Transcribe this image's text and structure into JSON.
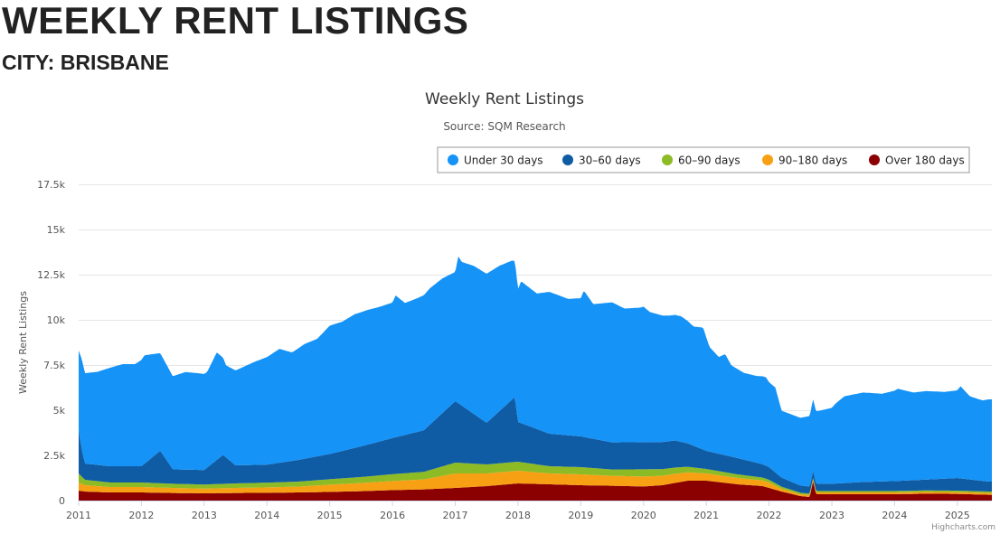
{
  "page": {
    "title": "WEEKLY RENT LISTINGS",
    "subtitle": "CITY: BRISBANE"
  },
  "credits": "Highcharts.com",
  "chart_data": {
    "type": "area",
    "stacked": true,
    "title": "Weekly Rent Listings",
    "subtitle": "Source: SQM Research",
    "ylabel": "Weekly Rent Listings",
    "xlabel": "",
    "ylim": [
      0,
      17500
    ],
    "yticks": [
      0,
      2500,
      5000,
      7500,
      10000,
      12500,
      15000,
      17500
    ],
    "ytick_labels": [
      "0",
      "2.5k",
      "5k",
      "7.5k",
      "10k",
      "12.5k",
      "15k",
      "17.5k"
    ],
    "xlim": [
      2011,
      2025.55
    ],
    "xticks": [
      2011,
      2012,
      2013,
      2014,
      2015,
      2016,
      2017,
      2018,
      2019,
      2020,
      2021,
      2022,
      2023,
      2024,
      2025
    ],
    "xtick_labels": [
      "2011",
      "2012",
      "2013",
      "2014",
      "2015",
      "2016",
      "2017",
      "2018",
      "2019",
      "2020",
      "2021",
      "2022",
      "2023",
      "2024",
      "2025"
    ],
    "grid": true,
    "legend_position": "top-right",
    "series": [
      {
        "name": "Over 180 days",
        "color": "#8b0000",
        "x": [
          2011.0,
          2011.1,
          2011.5,
          2012.0,
          2012.5,
          2013.0,
          2013.5,
          2014.0,
          2014.5,
          2015.0,
          2015.5,
          2016.0,
          2016.5,
          2017.0,
          2017.5,
          2018.0,
          2018.5,
          2019.0,
          2019.5,
          2020.0,
          2020.3,
          2020.7,
          2021.0,
          2021.5,
          2021.9,
          2022.2,
          2022.5,
          2022.65,
          2022.7,
          2022.75,
          2023.0,
          2023.5,
          2024.0,
          2024.5,
          2025.0,
          2025.5
        ],
        "values": [
          550,
          500,
          450,
          450,
          420,
          400,
          420,
          430,
          450,
          480,
          520,
          580,
          620,
          700,
          800,
          950,
          900,
          850,
          820,
          780,
          850,
          1100,
          1100,
          900,
          800,
          500,
          250,
          200,
          1100,
          350,
          350,
          350,
          350,
          380,
          370,
          320
        ]
      },
      {
        "name": "90–180 days",
        "color": "#f8a014",
        "x": [
          2011.0,
          2011.1,
          2011.5,
          2012.0,
          2012.5,
          2013.0,
          2013.5,
          2014.0,
          2014.5,
          2015.0,
          2015.5,
          2016.0,
          2016.5,
          2017.0,
          2017.5,
          2018.0,
          2018.5,
          2019.0,
          2019.5,
          2020.0,
          2020.5,
          2021.0,
          2021.5,
          2022.0,
          2022.2,
          2022.5,
          2023.0,
          2023.5,
          2024.0,
          2024.5,
          2025.0,
          2025.5
        ],
        "values": [
          450,
          350,
          300,
          300,
          280,
          260,
          280,
          300,
          320,
          400,
          450,
          500,
          550,
          800,
          700,
          700,
          600,
          600,
          550,
          550,
          500,
          400,
          350,
          300,
          150,
          100,
          100,
          100,
          100,
          100,
          100,
          100
        ]
      },
      {
        "name": "60–90 days",
        "color": "#8dbb25",
        "x": [
          2011.0,
          2011.1,
          2011.5,
          2012.0,
          2012.5,
          2013.0,
          2013.5,
          2014.0,
          2014.5,
          2015.0,
          2015.5,
          2016.0,
          2016.5,
          2017.0,
          2017.5,
          2018.0,
          2018.5,
          2019.0,
          2019.5,
          2020.0,
          2020.5,
          2021.0,
          2021.5,
          2022.0,
          2022.2,
          2022.5,
          2023.0,
          2023.5,
          2024.0,
          2024.5,
          2025.0,
          2025.5
        ],
        "values": [
          500,
          300,
          250,
          250,
          230,
          230,
          250,
          260,
          280,
          300,
          330,
          380,
          420,
          600,
          500,
          500,
          400,
          400,
          350,
          400,
          350,
          250,
          200,
          150,
          120,
          80,
          80,
          80,
          80,
          80,
          80,
          80
        ]
      },
      {
        "name": "30–60 days",
        "color": "#0f5ca4",
        "x": [
          2011.0,
          2011.05,
          2011.1,
          2011.5,
          2012.0,
          2012.3,
          2012.5,
          2013.0,
          2013.3,
          2013.5,
          2014.0,
          2014.5,
          2015.0,
          2015.5,
          2016.0,
          2016.5,
          2017.0,
          2017.5,
          2017.95,
          2018.0,
          2018.5,
          2019.0,
          2019.5,
          2020.0,
          2020.5,
          2020.8,
          2021.0,
          2021.5,
          2022.0,
          2022.2,
          2022.5,
          2023.0,
          2023.5,
          2024.0,
          2024.5,
          2025.0,
          2025.5
        ],
        "values": [
          2400,
          1500,
          900,
          900,
          900,
          1800,
          800,
          800,
          1600,
          1000,
          1000,
          1200,
          1400,
          1700,
          2000,
          2300,
          3400,
          2300,
          3600,
          2200,
          1800,
          1700,
          1500,
          1500,
          1500,
          1200,
          1000,
          900,
          700,
          500,
          400,
          400,
          500,
          550,
          600,
          700,
          550
        ]
      },
      {
        "name": "Under 30 days",
        "color": "#1593f7",
        "x": [
          2011.0,
          2011.05,
          2011.1,
          2011.3,
          2011.5,
          2011.7,
          2011.9,
          2012.05,
          2012.3,
          2012.5,
          2012.7,
          2012.9,
          2013.05,
          2013.2,
          2013.35,
          2013.5,
          2013.8,
          2014.0,
          2014.2,
          2014.4,
          2014.6,
          2014.8,
          2015.0,
          2015.2,
          2015.4,
          2015.6,
          2015.8,
          2016.0,
          2016.05,
          2016.2,
          2016.4,
          2016.6,
          2016.8,
          2017.0,
          2017.05,
          2017.1,
          2017.3,
          2017.5,
          2017.7,
          2017.9,
          2018.0,
          2018.05,
          2018.3,
          2018.5,
          2018.8,
          2019.0,
          2019.05,
          2019.2,
          2019.5,
          2019.7,
          2019.95,
          2020.0,
          2020.1,
          2020.3,
          2020.4,
          2020.6,
          2020.8,
          2020.95,
          2021.05,
          2021.2,
          2021.3,
          2021.4,
          2021.6,
          2021.8,
          2021.95,
          2022.0,
          2022.1,
          2022.2,
          2022.5,
          2022.75,
          2023.0,
          2023.05,
          2023.2,
          2023.5,
          2023.8,
          2024.0,
          2024.05,
          2024.3,
          2024.5,
          2024.8,
          2025.0,
          2025.05,
          2025.2,
          2025.4,
          2025.5
        ],
        "values": [
          4400,
          5000,
          5000,
          5150,
          5450,
          5650,
          5650,
          6000,
          5400,
          5150,
          5400,
          5350,
          5300,
          5950,
          5100,
          5250,
          5700,
          5950,
          6300,
          6000,
          6350,
          6500,
          7100,
          7150,
          7400,
          7450,
          7450,
          7500,
          7850,
          7300,
          7400,
          7550,
          7450,
          7150,
          8150,
          7950,
          8200,
          8250,
          8050,
          7700,
          7350,
          7850,
          7500,
          7850,
          7550,
          7650,
          8100,
          7450,
          7750,
          7400,
          7450,
          7500,
          7200,
          7000,
          6950,
          6950,
          6600,
          6750,
          5800,
          5350,
          5600,
          5050,
          4800,
          4800,
          4900,
          4700,
          4700,
          3700,
          3750,
          4000,
          4200,
          4400,
          4800,
          4950,
          4850,
          5000,
          5100,
          4850,
          4900,
          4800,
          4850,
          5100,
          4600,
          4450,
          4550
        ]
      }
    ]
  }
}
